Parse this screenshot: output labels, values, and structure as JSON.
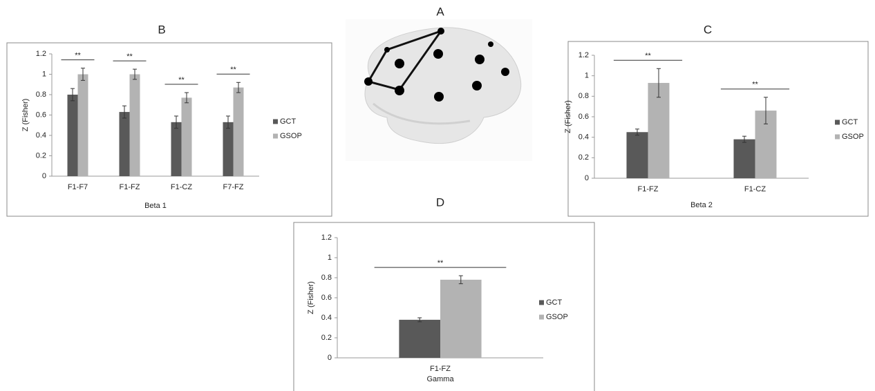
{
  "image_panel": {
    "label": "A"
  },
  "chart_data": [
    {
      "type": "bar",
      "panel": "B",
      "xlabel": "Beta 1",
      "ylabel": "Z (Fisher)",
      "categories": [
        "F1-F7",
        "F1-FZ",
        "F1-CZ",
        "F7-FZ"
      ],
      "series": [
        {
          "name": "GCT",
          "color": "#595959",
          "values": [
            0.8,
            0.63,
            0.53,
            0.53
          ],
          "errors": [
            0.06,
            0.06,
            0.06,
            0.06
          ]
        },
        {
          "name": "GSOP",
          "color": "#b3b3b3",
          "values": [
            1.0,
            1.0,
            0.77,
            0.87
          ],
          "errors": [
            0.06,
            0.05,
            0.05,
            0.05
          ]
        }
      ],
      "annotations": [
        "**",
        "**",
        "**",
        "**"
      ],
      "ylim": [
        0,
        1.2
      ],
      "yticks": [
        0,
        0.2,
        0.4,
        0.6,
        0.8,
        1,
        1.2
      ]
    },
    {
      "type": "bar",
      "panel": "C",
      "xlabel": "Beta 2",
      "ylabel": "Z (Fisher)",
      "categories": [
        "F1-FZ",
        "F1-CZ"
      ],
      "series": [
        {
          "name": "GCT",
          "color": "#595959",
          "values": [
            0.45,
            0.38
          ],
          "errors": [
            0.03,
            0.03
          ]
        },
        {
          "name": "GSOP",
          "color": "#b3b3b3",
          "values": [
            0.93,
            0.66
          ],
          "errors": [
            0.14,
            0.13
          ]
        }
      ],
      "annotations": [
        "**",
        "**"
      ],
      "ylim": [
        0,
        1.2
      ],
      "yticks": [
        0,
        0.2,
        0.4,
        0.6,
        0.8,
        1,
        1.2
      ]
    },
    {
      "type": "bar",
      "panel": "D",
      "xlabel": "Gamma",
      "ylabel": "Z (Fisher)",
      "categories": [
        "F1-FZ"
      ],
      "series": [
        {
          "name": "GCT",
          "color": "#595959",
          "values": [
            0.38
          ],
          "errors": [
            0.02
          ]
        },
        {
          "name": "GSOP",
          "color": "#b3b3b3",
          "values": [
            0.78
          ],
          "errors": [
            0.04
          ]
        }
      ],
      "annotations": [
        "**"
      ],
      "ylim": [
        0,
        1.2
      ],
      "yticks": [
        0,
        0.2,
        0.4,
        0.6,
        0.8,
        1,
        1.2
      ]
    }
  ]
}
